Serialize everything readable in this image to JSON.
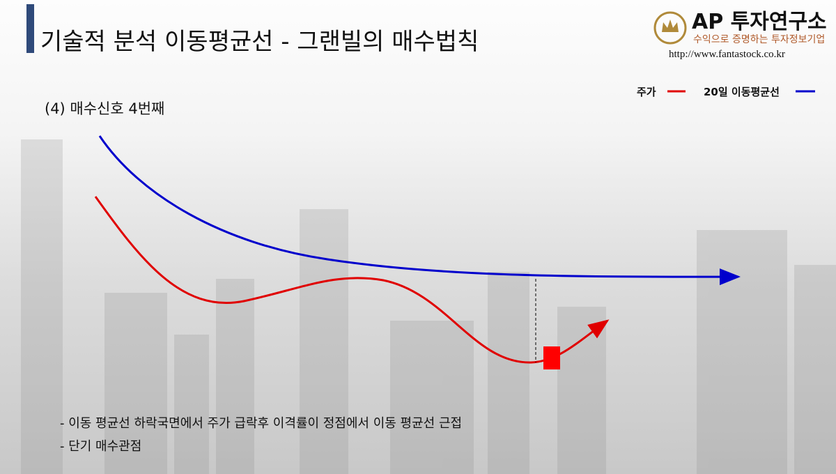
{
  "header": {
    "title": "기술적 분석 이동평균선 - 그랜빌의 매수법칙"
  },
  "logo": {
    "name": "AP 투자연구소",
    "tagline": "수익으로 증명하는 투자정보기업",
    "url": "http://www.fantastock.co.kr"
  },
  "subtitle": "(4) 매수신호 4번째",
  "legend": [
    {
      "label": "주가",
      "color": "#e00000"
    },
    {
      "label": "20일 이동평균선",
      "color": "#0000cc"
    }
  ],
  "bullets": [
    "- 이동 평균선 하락국면에서 주가 급락후 이격률이 정점에서 이동 평균선 근접",
    "- 단기 매수관점"
  ]
}
